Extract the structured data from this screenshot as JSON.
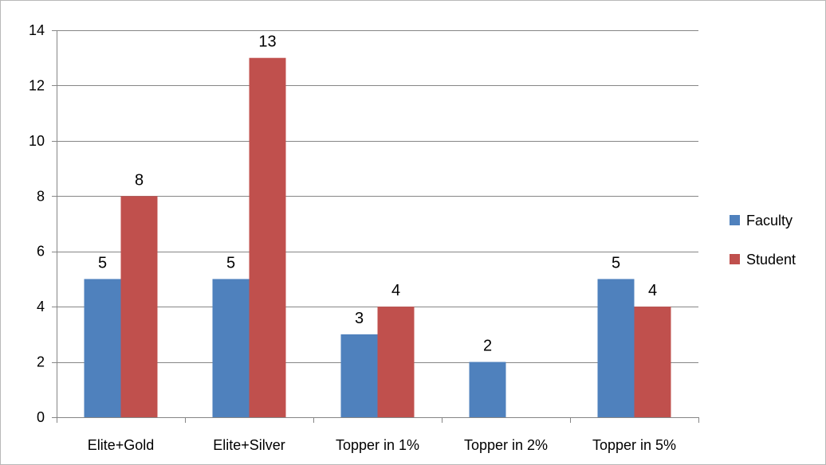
{
  "chart_data": {
    "type": "bar",
    "title": "",
    "xlabel": "",
    "ylabel": "",
    "categories": [
      "Elite+Gold",
      "Elite+Silver",
      "Topper in 1%",
      "Topper in 2%",
      "Topper in 5%"
    ],
    "series": [
      {
        "name": "Faculty",
        "values": [
          5,
          5,
          3,
          2,
          5
        ],
        "color": "#4F81BD"
      },
      {
        "name": "Student",
        "values": [
          8,
          13,
          4,
          null,
          4
        ],
        "color": "#C0504D"
      }
    ],
    "ylim": [
      0,
      14
    ],
    "yticks": [
      0,
      2,
      4,
      6,
      8,
      10,
      12,
      14
    ],
    "grid": "horizontal",
    "legend_position": "right",
    "data_labels": true
  }
}
